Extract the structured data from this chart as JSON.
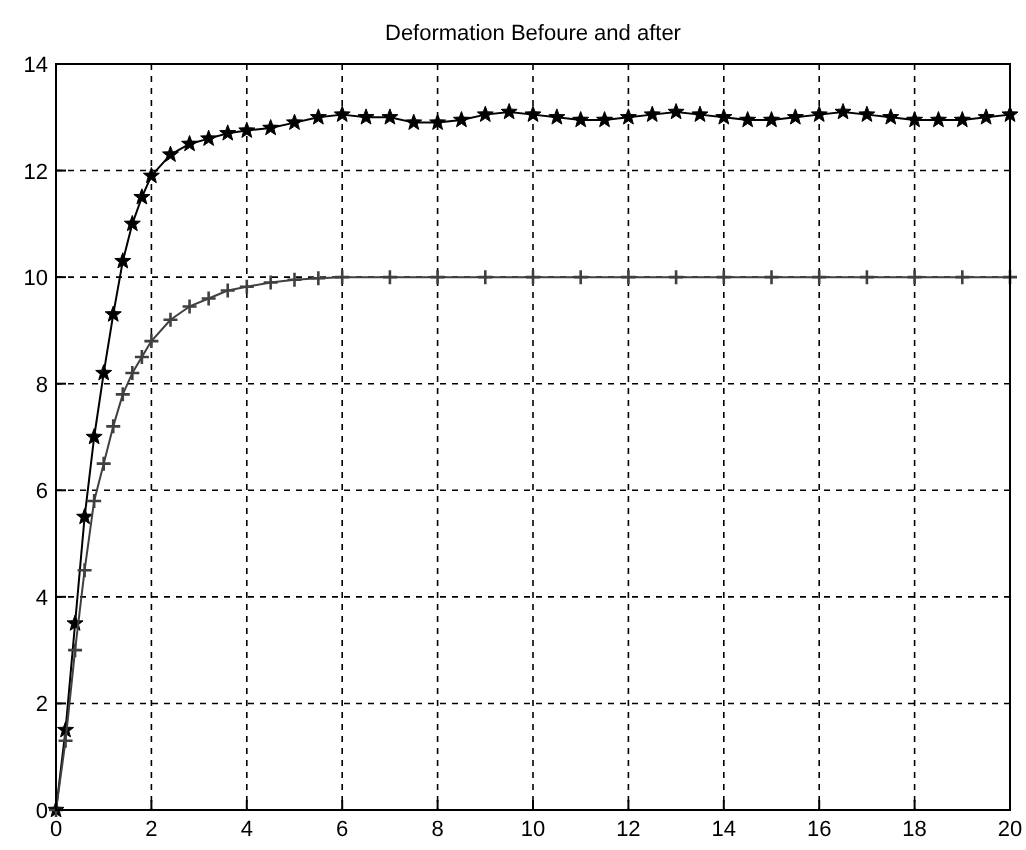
{
  "chart_data": {
    "type": "line",
    "title": "Deformation Befoure and after",
    "xlim": [
      0,
      20
    ],
    "ylim": [
      0,
      14
    ],
    "xticks": [
      0,
      2,
      4,
      6,
      8,
      10,
      12,
      14,
      16,
      18,
      20
    ],
    "yticks": [
      0,
      2,
      4,
      6,
      8,
      10,
      12,
      14
    ],
    "grid": true,
    "line_style": "solid",
    "series": [
      {
        "color": "#000000",
        "marker": "star",
        "x": [
          0,
          0.2,
          0.4,
          0.6,
          0.8,
          1.0,
          1.2,
          1.4,
          1.6,
          1.8,
          2.0,
          2.4,
          2.8,
          3.2,
          3.6,
          4,
          4.5,
          5,
          5.5,
          6,
          6.5,
          7,
          7.5,
          8,
          8.5,
          9,
          9.5,
          10,
          10.5,
          11,
          11.5,
          12,
          12.5,
          13,
          13.5,
          14,
          14.5,
          15,
          15.5,
          16,
          16.5,
          17,
          17.5,
          18,
          18.5,
          19,
          19.5,
          20
        ],
        "values": [
          0,
          1.5,
          3.5,
          5.5,
          7,
          8.2,
          9.3,
          10.3,
          11,
          11.5,
          11.9,
          12.3,
          12.5,
          12.6,
          12.7,
          12.75,
          12.8,
          12.9,
          13,
          13.05,
          13,
          13,
          12.9,
          12.9,
          12.95,
          13.05,
          13.1,
          13.05,
          13,
          12.95,
          12.95,
          13,
          13.05,
          13.1,
          13.05,
          13,
          12.95,
          12.95,
          13,
          13.05,
          13.1,
          13.05,
          13,
          12.95,
          12.95,
          12.95,
          13,
          13.05
        ]
      },
      {
        "color": "#404040",
        "marker": "cross",
        "x": [
          0,
          0.2,
          0.4,
          0.6,
          0.8,
          1.0,
          1.2,
          1.4,
          1.6,
          1.8,
          2.0,
          2.4,
          2.8,
          3.2,
          3.6,
          4,
          4.5,
          5,
          5.5,
          6,
          7,
          8,
          9,
          10,
          11,
          12,
          13,
          14,
          15,
          16,
          17,
          18,
          19,
          20
        ],
        "values": [
          0,
          1.3,
          3,
          4.5,
          5.8,
          6.5,
          7.2,
          7.8,
          8.2,
          8.5,
          8.8,
          9.2,
          9.45,
          9.6,
          9.75,
          9.82,
          9.9,
          9.95,
          9.98,
          10,
          10,
          10,
          10,
          10,
          10,
          10,
          10,
          10,
          10,
          10,
          10,
          10,
          10,
          10
        ]
      }
    ]
  }
}
